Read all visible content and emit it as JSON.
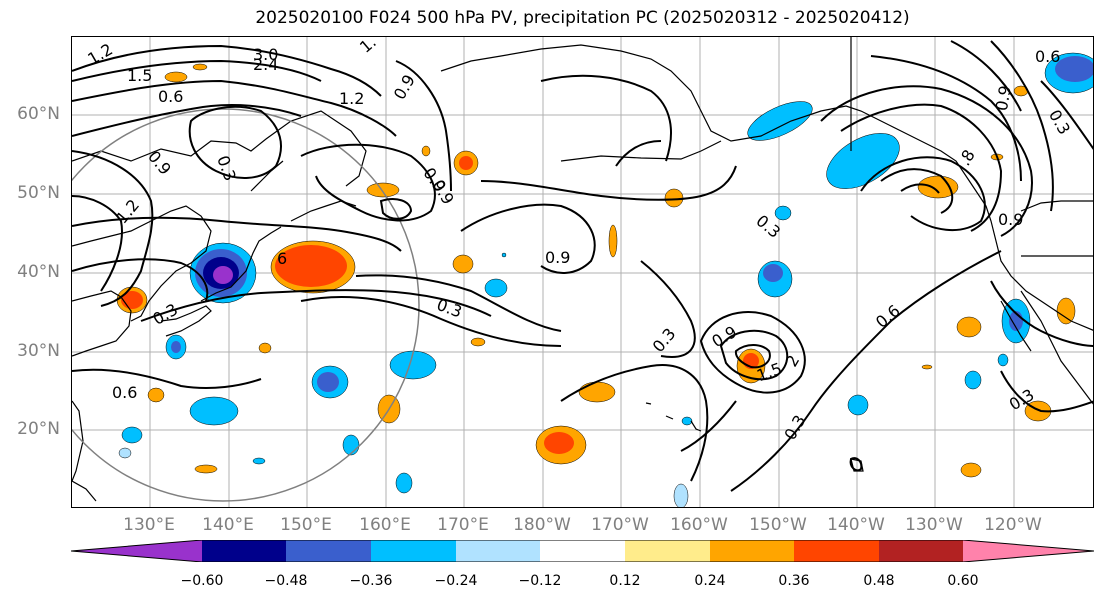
{
  "title": "2025020100 F024 500 hPa PV, precipitation PC (2025020312 - 2025020412)",
  "lat_labels": [
    "60°N",
    "50°N",
    "40°N",
    "30°N",
    "20°N"
  ],
  "lon_labels": [
    "130°E",
    "140°E",
    "150°E",
    "160°E",
    "170°E",
    "180°W",
    "170°W",
    "160°W",
    "150°W",
    "140°W",
    "130°W",
    "120°W"
  ],
  "contour_labels": [
    "1.2",
    "1.5",
    "0.6",
    "3.0",
    "2.4",
    "1.",
    "0.9",
    "1.2",
    "0.9",
    "0.3",
    "1.2",
    "0.9",
    "0.9",
    "6",
    "0.3",
    "0.3",
    "0.6",
    "0.9",
    "0.3",
    "0.3",
    "0.9",
    "1.5",
    "2",
    "0.3",
    "0.6",
    "0.9",
    "0.3",
    "0.6",
    "0.9",
    ".8",
    "0.3"
  ],
  "colorbar": {
    "colors": [
      "#9932CC",
      "#00008B",
      "#3A5FCD",
      "#00BFFF",
      "#B0E2FF",
      "#FFFFFF",
      "#FFEC8B",
      "#FFA500",
      "#FF4500",
      "#B22222",
      "#FF82AB"
    ],
    "ticks": [
      "−0.60",
      "−0.48",
      "−0.36",
      "−0.24",
      "−0.12",
      "0.12",
      "0.24",
      "0.36",
      "0.48",
      "0.60"
    ]
  },
  "colors": {
    "grid": "#b0b0b0",
    "coast": "#000000",
    "contour": "#000000",
    "circle": "#808080",
    "axis_label": "#808080"
  }
}
